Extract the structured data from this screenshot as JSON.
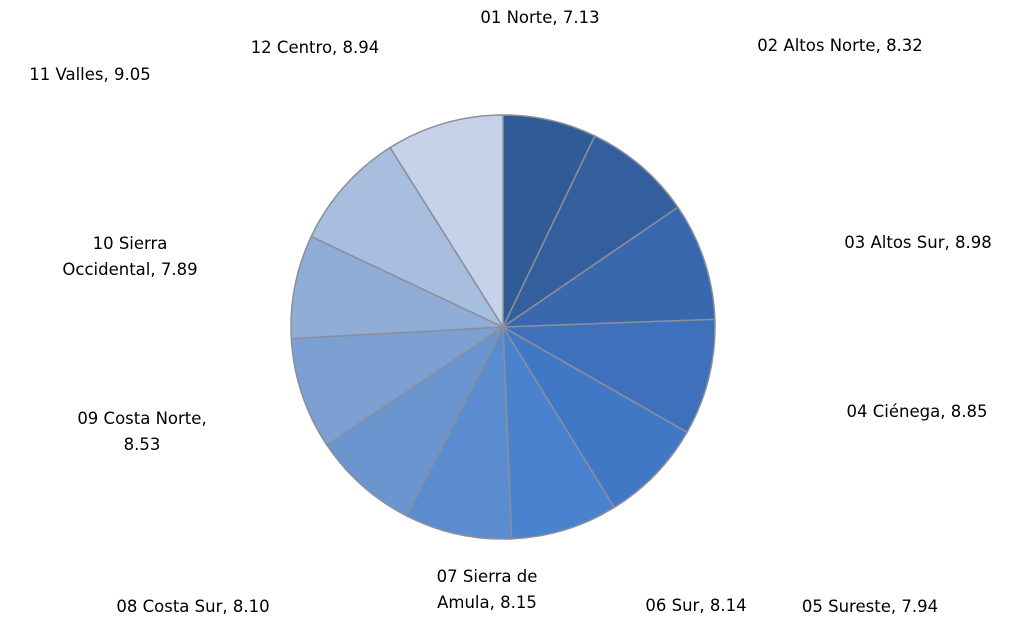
{
  "chart_data": {
    "type": "pie",
    "categories": [
      "01 Norte",
      "02 Altos Norte",
      "03 Altos Sur",
      "04 Ciénega",
      "05 Sureste",
      "06 Sur",
      "07 Sierra de Amula",
      "08 Costa Sur",
      "09 Costa Norte",
      "10 Sierra Occidental",
      "11 Valles",
      "12 Centro"
    ],
    "values": [
      7.13,
      8.32,
      8.98,
      8.85,
      7.94,
      8.14,
      8.15,
      8.1,
      8.53,
      7.89,
      9.05,
      8.94
    ],
    "colors": [
      "#2f5b96",
      "#345f9e",
      "#3a68ae",
      "#3f70bb",
      "#4178c6",
      "#4a82cf",
      "#5a8ccf",
      "#6a95cf",
      "#7ba0d1",
      "#8fadd6",
      "#a8bedf",
      "#c6d2ea"
    ]
  }
}
